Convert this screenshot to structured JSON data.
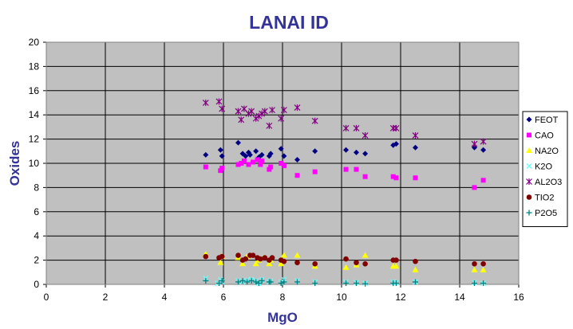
{
  "chart_data": {
    "type": "scatter",
    "title": "LANAI ID",
    "xlabel": "MgO",
    "ylabel": "Oxides",
    "xlim": [
      0,
      16
    ],
    "ylim": [
      0,
      20
    ],
    "xticks": [
      0,
      2,
      4,
      6,
      8,
      10,
      12,
      14,
      16
    ],
    "yticks": [
      0,
      2,
      4,
      6,
      8,
      10,
      12,
      14,
      16,
      18,
      20
    ],
    "grid": true,
    "legend_position": "right",
    "series": [
      {
        "name": "FEOT",
        "color": "#000080",
        "marker": "diamond",
        "points": [
          [
            5.4,
            10.7
          ],
          [
            5.9,
            11.1
          ],
          [
            5.95,
            10.6
          ],
          [
            6.5,
            11.7
          ],
          [
            6.65,
            10.8
          ],
          [
            6.75,
            10.6
          ],
          [
            6.85,
            10.9
          ],
          [
            6.9,
            10.7
          ],
          [
            7.1,
            11.0
          ],
          [
            7.2,
            10.5
          ],
          [
            7.3,
            10.7
          ],
          [
            7.55,
            10.6
          ],
          [
            7.6,
            10.8
          ],
          [
            7.95,
            11.2
          ],
          [
            8.05,
            10.6
          ],
          [
            8.5,
            10.3
          ],
          [
            9.1,
            11.0
          ],
          [
            10.15,
            11.1
          ],
          [
            10.5,
            10.9
          ],
          [
            10.8,
            10.8
          ],
          [
            11.75,
            11.5
          ],
          [
            11.85,
            11.6
          ],
          [
            12.5,
            11.3
          ],
          [
            14.5,
            11.3
          ],
          [
            14.8,
            11.1
          ]
        ]
      },
      {
        "name": "CAO",
        "color": "#FF00FF",
        "marker": "square",
        "points": [
          [
            5.4,
            9.7
          ],
          [
            5.9,
            9.4
          ],
          [
            5.95,
            9.6
          ],
          [
            6.5,
            9.9
          ],
          [
            6.6,
            10.0
          ],
          [
            6.7,
            10.2
          ],
          [
            6.85,
            9.9
          ],
          [
            7.0,
            10.1
          ],
          [
            7.15,
            10.3
          ],
          [
            7.25,
            9.9
          ],
          [
            7.3,
            10.2
          ],
          [
            7.55,
            9.5
          ],
          [
            7.6,
            9.7
          ],
          [
            7.95,
            10.0
          ],
          [
            8.05,
            9.8
          ],
          [
            8.5,
            9.0
          ],
          [
            9.1,
            9.3
          ],
          [
            10.15,
            9.5
          ],
          [
            10.5,
            9.5
          ],
          [
            10.8,
            8.9
          ],
          [
            11.75,
            8.9
          ],
          [
            11.85,
            8.8
          ],
          [
            12.5,
            8.8
          ],
          [
            14.5,
            8.0
          ],
          [
            14.8,
            8.6
          ]
        ]
      },
      {
        "name": "NA2O",
        "color": "#FFFF00",
        "marker": "triangle",
        "points": [
          [
            5.4,
            2.5
          ],
          [
            5.9,
            1.8
          ],
          [
            5.95,
            2.3
          ],
          [
            6.5,
            2.2
          ],
          [
            6.65,
            1.7
          ],
          [
            6.8,
            2.3
          ],
          [
            6.95,
            2.4
          ],
          [
            7.1,
            1.7
          ],
          [
            7.2,
            2.0
          ],
          [
            7.35,
            2.2
          ],
          [
            7.55,
            1.7
          ],
          [
            7.6,
            2.0
          ],
          [
            7.95,
            1.7
          ],
          [
            8.05,
            2.4
          ],
          [
            8.5,
            2.4
          ],
          [
            9.1,
            1.5
          ],
          [
            10.15,
            1.4
          ],
          [
            10.5,
            1.6
          ],
          [
            10.8,
            2.4
          ],
          [
            11.75,
            1.5
          ],
          [
            11.85,
            1.5
          ],
          [
            12.5,
            1.2
          ],
          [
            14.5,
            1.2
          ],
          [
            14.8,
            1.2
          ]
        ]
      },
      {
        "name": "K2O",
        "color": "#66FFFF",
        "marker": "x",
        "points": [
          [
            5.4,
            0.5
          ],
          [
            5.8,
            0.1
          ],
          [
            5.9,
            0.4
          ],
          [
            5.95,
            0.2
          ],
          [
            6.5,
            0.3
          ],
          [
            6.65,
            0.2
          ],
          [
            6.8,
            0.35
          ],
          [
            6.95,
            0.4
          ],
          [
            7.1,
            0.3
          ],
          [
            7.2,
            0.1
          ],
          [
            7.3,
            0.4
          ],
          [
            7.55,
            0.2
          ],
          [
            7.6,
            0.3
          ],
          [
            7.95,
            0.2
          ],
          [
            8.05,
            0.4
          ],
          [
            8.5,
            0.3
          ],
          [
            9.1,
            0.2
          ],
          [
            10.15,
            0.2
          ],
          [
            10.5,
            0.15
          ],
          [
            10.8,
            0.1
          ],
          [
            11.75,
            0.2
          ],
          [
            11.85,
            0.15
          ],
          [
            12.5,
            0.2
          ],
          [
            14.5,
            0.15
          ],
          [
            14.8,
            0.1
          ]
        ]
      },
      {
        "name": "AL2O3",
        "color": "#800080",
        "marker": "star",
        "points": [
          [
            5.4,
            15.0
          ],
          [
            5.85,
            15.1
          ],
          [
            5.95,
            14.5
          ],
          [
            6.5,
            14.3
          ],
          [
            6.6,
            13.6
          ],
          [
            6.7,
            14.5
          ],
          [
            6.85,
            14.1
          ],
          [
            6.95,
            14.3
          ],
          [
            7.1,
            13.7
          ],
          [
            7.2,
            13.9
          ],
          [
            7.3,
            14.1
          ],
          [
            7.4,
            14.3
          ],
          [
            7.55,
            13.1
          ],
          [
            7.65,
            14.4
          ],
          [
            7.95,
            13.7
          ],
          [
            8.05,
            14.4
          ],
          [
            8.5,
            14.6
          ],
          [
            9.1,
            13.5
          ],
          [
            10.15,
            12.9
          ],
          [
            10.5,
            12.9
          ],
          [
            10.8,
            12.3
          ],
          [
            11.75,
            12.9
          ],
          [
            11.85,
            12.9
          ],
          [
            12.5,
            12.3
          ],
          [
            14.5,
            11.6
          ],
          [
            14.8,
            11.8
          ]
        ]
      },
      {
        "name": "TIO2",
        "color": "#800000",
        "marker": "circle",
        "points": [
          [
            5.4,
            2.3
          ],
          [
            5.85,
            2.2
          ],
          [
            5.95,
            2.3
          ],
          [
            6.5,
            2.4
          ],
          [
            6.65,
            2.0
          ],
          [
            6.75,
            2.1
          ],
          [
            6.9,
            2.4
          ],
          [
            7.0,
            2.4
          ],
          [
            7.15,
            2.2
          ],
          [
            7.25,
            2.1
          ],
          [
            7.4,
            2.2
          ],
          [
            7.55,
            2.0
          ],
          [
            7.65,
            2.2
          ],
          [
            7.95,
            2.0
          ],
          [
            8.05,
            1.9
          ],
          [
            8.5,
            1.8
          ],
          [
            9.1,
            1.7
          ],
          [
            10.15,
            2.1
          ],
          [
            10.5,
            1.8
          ],
          [
            10.8,
            1.7
          ],
          [
            11.75,
            2.0
          ],
          [
            11.85,
            2.0
          ],
          [
            12.5,
            1.9
          ],
          [
            14.5,
            1.7
          ],
          [
            14.8,
            1.7
          ]
        ]
      },
      {
        "name": "P2O5",
        "color": "#008080",
        "marker": "plus",
        "points": [
          [
            5.4,
            0.3
          ],
          [
            5.85,
            0.1
          ],
          [
            5.95,
            0.3
          ],
          [
            6.5,
            0.2
          ],
          [
            6.65,
            0.3
          ],
          [
            6.8,
            0.2
          ],
          [
            6.95,
            0.3
          ],
          [
            7.1,
            0.2
          ],
          [
            7.2,
            0.1
          ],
          [
            7.3,
            0.3
          ],
          [
            7.55,
            0.2
          ],
          [
            7.6,
            0.2
          ],
          [
            7.95,
            0.1
          ],
          [
            8.05,
            0.2
          ],
          [
            8.5,
            0.2
          ],
          [
            9.1,
            0.1
          ],
          [
            10.15,
            0.1
          ],
          [
            10.5,
            0.1
          ],
          [
            10.8,
            0.05
          ],
          [
            11.75,
            0.1
          ],
          [
            11.85,
            0.1
          ],
          [
            12.5,
            0.2
          ],
          [
            14.5,
            0.1
          ],
          [
            14.8,
            0.1
          ]
        ]
      }
    ]
  }
}
